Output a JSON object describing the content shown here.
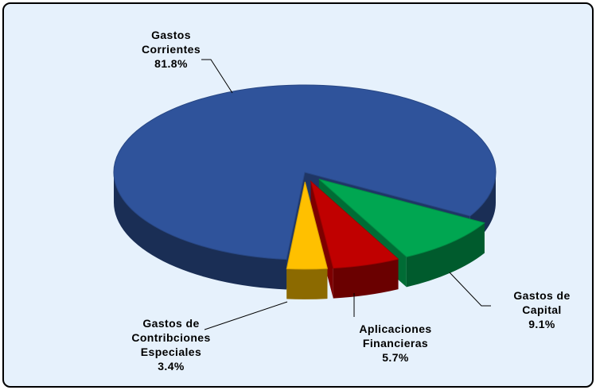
{
  "chart_data": {
    "type": "pie",
    "categories": [
      "Gastos Corrientes",
      "Gastos de Capital",
      "Aplicaciones Financieras",
      "Gastos de Contribciones Especiales"
    ],
    "values": [
      81.8,
      9.1,
      5.7,
      3.4
    ],
    "value_labels": [
      "81.8%",
      "9.1%",
      "5.7%",
      "3.4%"
    ],
    "colors": [
      "#2f539b",
      "#00a651",
      "#c00000",
      "#ffc000"
    ]
  }
}
